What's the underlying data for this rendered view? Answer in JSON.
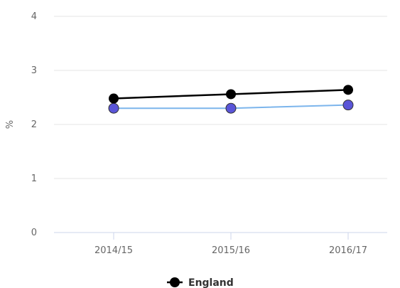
{
  "chart_data": {
    "type": "line",
    "title": "",
    "xlabel": "",
    "ylabel": "%",
    "categories": [
      "2014/15",
      "2015/16",
      "2016/17"
    ],
    "ylim": [
      0,
      4
    ],
    "yticks": [
      0,
      1,
      2,
      3,
      4
    ],
    "grid": true,
    "legend": "bottom-center",
    "series": [
      {
        "name": "England",
        "values": [
          2.48,
          2.56,
          2.64
        ],
        "line_color": "#000000",
        "marker_color": "#000000"
      },
      {
        "name": "",
        "values": [
          2.3,
          2.3,
          2.36
        ],
        "line_color": "#7cb5ec",
        "marker_color": "#5a55d8"
      }
    ]
  }
}
